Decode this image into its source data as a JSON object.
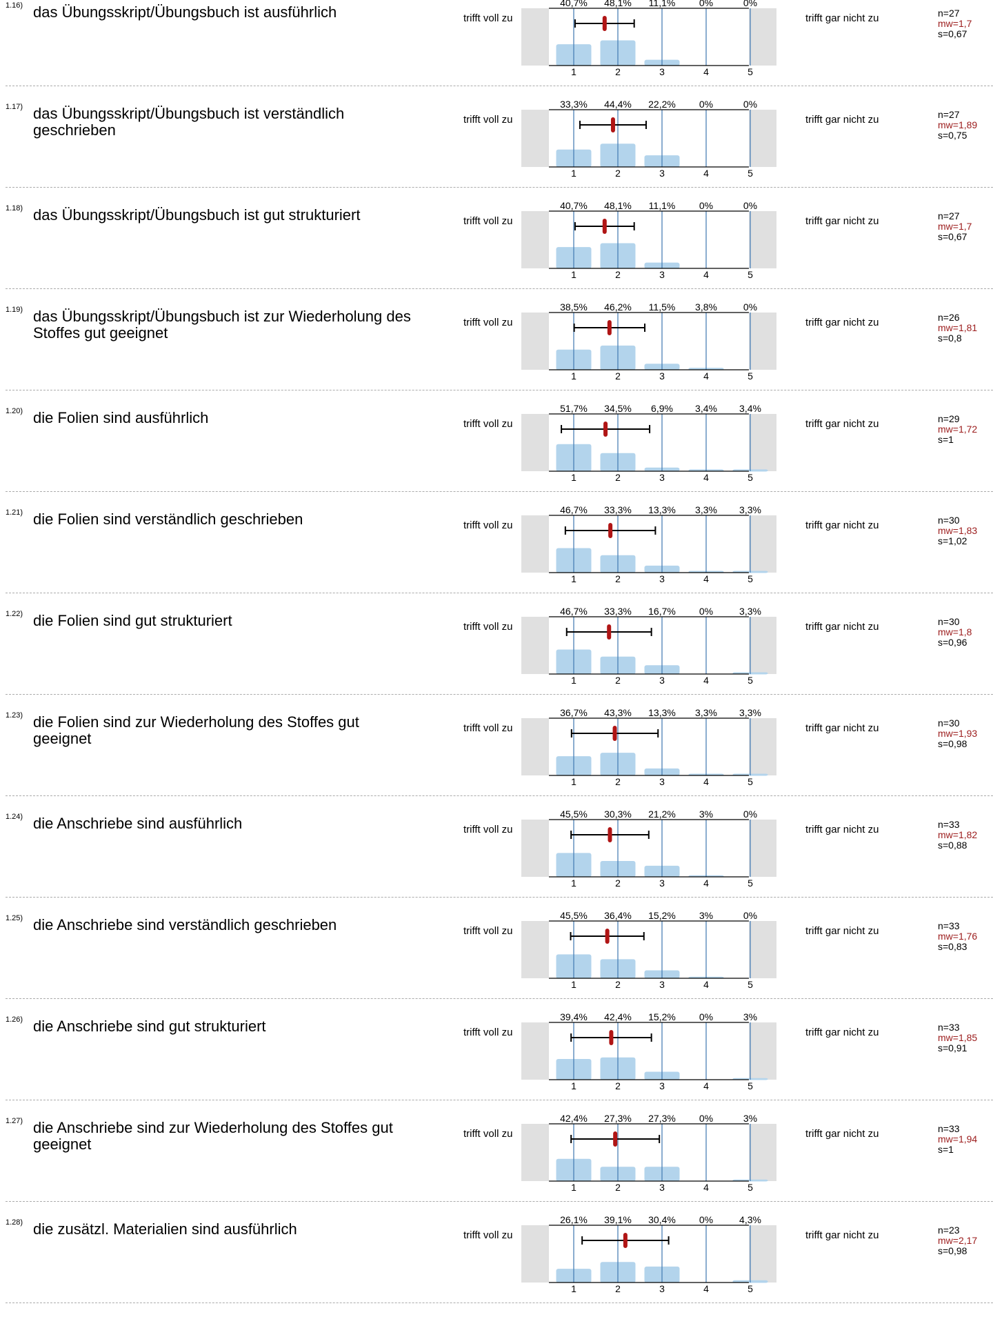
{
  "scale": {
    "left_label": "trifft voll zu",
    "right_label": "trifft gar nicht zu",
    "ticks": [
      "1",
      "2",
      "3",
      "4",
      "5"
    ]
  },
  "colors": {
    "bar": "#b3d4ec",
    "gridline": "#4a7fb5",
    "mean": "#b01515",
    "side_box": "#e0e0e0",
    "mw_text": "#9b1b1b"
  },
  "chart_data": [
    {
      "type": "bar",
      "id": "1.16",
      "question": "das Übungsskript/Übungsbuch ist ausführlich",
      "categories": [
        "1",
        "2",
        "3",
        "4",
        "5"
      ],
      "values": [
        40.7,
        48.1,
        11.1,
        0,
        0
      ],
      "labels": [
        "40,7%",
        "48,1%",
        "11,1%",
        "0%",
        "0%"
      ],
      "n": "n=27",
      "mw": "mw=1,7",
      "s": "s=0,67",
      "mean": 1.7,
      "sd": 0.67
    },
    {
      "type": "bar",
      "id": "1.17",
      "question": "das Übungsskript/Übungsbuch ist verständlich geschrieben",
      "categories": [
        "1",
        "2",
        "3",
        "4",
        "5"
      ],
      "values": [
        33.3,
        44.4,
        22.2,
        0,
        0
      ],
      "labels": [
        "33,3%",
        "44,4%",
        "22,2%",
        "0%",
        "0%"
      ],
      "n": "n=27",
      "mw": "mw=1,89",
      "s": "s=0,75",
      "mean": 1.89,
      "sd": 0.75
    },
    {
      "type": "bar",
      "id": "1.18",
      "question": "das Übungsskript/Übungsbuch ist gut strukturiert",
      "categories": [
        "1",
        "2",
        "3",
        "4",
        "5"
      ],
      "values": [
        40.7,
        48.1,
        11.1,
        0,
        0
      ],
      "labels": [
        "40,7%",
        "48,1%",
        "11,1%",
        "0%",
        "0%"
      ],
      "n": "n=27",
      "mw": "mw=1,7",
      "s": "s=0,67",
      "mean": 1.7,
      "sd": 0.67
    },
    {
      "type": "bar",
      "id": "1.19",
      "question": "das Übungsskript/Übungsbuch ist zur Wiederholung des Stoffes gut geeignet",
      "categories": [
        "1",
        "2",
        "3",
        "4",
        "5"
      ],
      "values": [
        38.5,
        46.2,
        11.5,
        3.8,
        0
      ],
      "labels": [
        "38,5%",
        "46,2%",
        "11,5%",
        "3,8%",
        "0%"
      ],
      "n": "n=26",
      "mw": "mw=1,81",
      "s": "s=0,8",
      "mean": 1.81,
      "sd": 0.8
    },
    {
      "type": "bar",
      "id": "1.20",
      "question": "die Folien sind ausführlich",
      "categories": [
        "1",
        "2",
        "3",
        "4",
        "5"
      ],
      "values": [
        51.7,
        34.5,
        6.9,
        3.4,
        3.4
      ],
      "labels": [
        "51,7%",
        "34,5%",
        "6,9%",
        "3,4%",
        "3,4%"
      ],
      "n": "n=29",
      "mw": "mw=1,72",
      "s": "s=1",
      "mean": 1.72,
      "sd": 1
    },
    {
      "type": "bar",
      "id": "1.21",
      "question": "die Folien sind verständlich geschrieben",
      "categories": [
        "1",
        "2",
        "3",
        "4",
        "5"
      ],
      "values": [
        46.7,
        33.3,
        13.3,
        3.3,
        3.3
      ],
      "labels": [
        "46,7%",
        "33,3%",
        "13,3%",
        "3,3%",
        "3,3%"
      ],
      "n": "n=30",
      "mw": "mw=1,83",
      "s": "s=1,02",
      "mean": 1.83,
      "sd": 1.02
    },
    {
      "type": "bar",
      "id": "1.22",
      "question": "die Folien sind gut strukturiert",
      "categories": [
        "1",
        "2",
        "3",
        "4",
        "5"
      ],
      "values": [
        46.7,
        33.3,
        16.7,
        0,
        3.3
      ],
      "labels": [
        "46,7%",
        "33,3%",
        "16,7%",
        "0%",
        "3,3%"
      ],
      "n": "n=30",
      "mw": "mw=1,8",
      "s": "s=0,96",
      "mean": 1.8,
      "sd": 0.96
    },
    {
      "type": "bar",
      "id": "1.23",
      "question": "die Folien sind zur Wiederholung des Stoffes gut geeignet",
      "categories": [
        "1",
        "2",
        "3",
        "4",
        "5"
      ],
      "values": [
        36.7,
        43.3,
        13.3,
        3.3,
        3.3
      ],
      "labels": [
        "36,7%",
        "43,3%",
        "13,3%",
        "3,3%",
        "3,3%"
      ],
      "n": "n=30",
      "mw": "mw=1,93",
      "s": "s=0,98",
      "mean": 1.93,
      "sd": 0.98
    },
    {
      "type": "bar",
      "id": "1.24",
      "question": "die Anschriebe sind ausführlich",
      "categories": [
        "1",
        "2",
        "3",
        "4",
        "5"
      ],
      "values": [
        45.5,
        30.3,
        21.2,
        3,
        0
      ],
      "labels": [
        "45,5%",
        "30,3%",
        "21,2%",
        "3%",
        "0%"
      ],
      "n": "n=33",
      "mw": "mw=1,82",
      "s": "s=0,88",
      "mean": 1.82,
      "sd": 0.88
    },
    {
      "type": "bar",
      "id": "1.25",
      "question": "die Anschriebe sind verständlich geschrieben",
      "categories": [
        "1",
        "2",
        "3",
        "4",
        "5"
      ],
      "values": [
        45.5,
        36.4,
        15.2,
        3,
        0
      ],
      "labels": [
        "45,5%",
        "36,4%",
        "15,2%",
        "3%",
        "0%"
      ],
      "n": "n=33",
      "mw": "mw=1,76",
      "s": "s=0,83",
      "mean": 1.76,
      "sd": 0.83
    },
    {
      "type": "bar",
      "id": "1.26",
      "question": "die Anschriebe sind gut strukturiert",
      "categories": [
        "1",
        "2",
        "3",
        "4",
        "5"
      ],
      "values": [
        39.4,
        42.4,
        15.2,
        0,
        3
      ],
      "labels": [
        "39,4%",
        "42,4%",
        "15,2%",
        "0%",
        "3%"
      ],
      "n": "n=33",
      "mw": "mw=1,85",
      "s": "s=0,91",
      "mean": 1.85,
      "sd": 0.91
    },
    {
      "type": "bar",
      "id": "1.27",
      "question": "die Anschriebe sind zur Wiederholung des Stoffes gut geeignet",
      "categories": [
        "1",
        "2",
        "3",
        "4",
        "5"
      ],
      "values": [
        42.4,
        27.3,
        27.3,
        0,
        3
      ],
      "labels": [
        "42,4%",
        "27,3%",
        "27,3%",
        "0%",
        "3%"
      ],
      "n": "n=33",
      "mw": "mw=1,94",
      "s": "s=1",
      "mean": 1.94,
      "sd": 1
    },
    {
      "type": "bar",
      "id": "1.28",
      "question": "die zusätzl. Materialien sind ausführlich",
      "categories": [
        "1",
        "2",
        "3",
        "4",
        "5"
      ],
      "values": [
        26.1,
        39.1,
        30.4,
        0,
        4.3
      ],
      "labels": [
        "26,1%",
        "39,1%",
        "30,4%",
        "0%",
        "4,3%"
      ],
      "n": "n=23",
      "mw": "mw=2,17",
      "s": "s=0,98",
      "mean": 2.17,
      "sd": 0.98
    }
  ]
}
